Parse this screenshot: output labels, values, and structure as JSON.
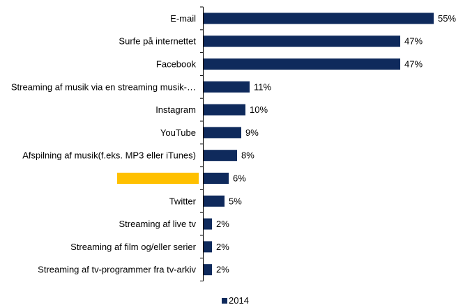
{
  "chart_data": {
    "type": "bar",
    "orientation": "horizontal",
    "categories": [
      "E-mail",
      "Surfe på internettet",
      "Facebook",
      "Streaming af musik via en streaming musik-…",
      "Instagram",
      "YouTube",
      "Afspilning af musik(f.eks. MP3 eller iTunes)",
      "",
      "Twitter",
      "Streaming af live tv",
      "Streaming af film og/eller serier",
      "Streaming af tv-programmer fra tv-arkiv"
    ],
    "series": [
      {
        "name": "2014",
        "values": [
          55,
          47,
          47,
          11,
          10,
          9,
          8,
          6,
          5,
          2,
          2,
          2
        ],
        "value_labels": [
          "55%",
          "47%",
          "47%",
          "11%",
          "10%",
          "9%",
          "8%",
          "6%",
          "5%",
          "2%",
          "2%",
          "2%"
        ]
      }
    ],
    "xlim": [
      0,
      55
    ],
    "grid": false,
    "legend": "bottom-center",
    "colors": {
      "bar": "#0f2a5c",
      "highlight_box": "#ffc000",
      "axis": "#000000"
    },
    "redacted_category_index": 7
  }
}
